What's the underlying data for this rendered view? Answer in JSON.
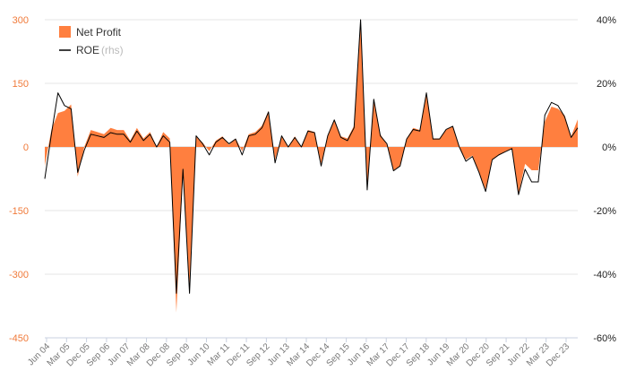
{
  "chart_data": {
    "type": "area",
    "title": "",
    "xlabel": "",
    "ylabel": "",
    "legend": {
      "placement": "top-left",
      "entries": [
        {
          "label": "Net Profit",
          "sub": "",
          "color": "#ff7f3f",
          "kind": "area"
        },
        {
          "label": "ROE",
          "sub": "(rhs)",
          "color": "#000000",
          "kind": "line"
        }
      ]
    },
    "colors": {
      "area": "#ff7f3f",
      "line": "#000000",
      "grid": "#e6e6e6",
      "left_ticks": "#f07a3a"
    },
    "grid": true,
    "y_left": {
      "min": -450,
      "max": 300,
      "ticks": [
        "300",
        "150",
        "0",
        "-150",
        "-300",
        "-450"
      ],
      "tick_values": [
        300,
        150,
        0,
        -150,
        -300,
        -450
      ]
    },
    "y_right": {
      "min": -60,
      "max": 40,
      "ticks": [
        "40%",
        "20%",
        "0%",
        "-20%",
        "-40%",
        "-60%"
      ],
      "tick_values": [
        40,
        20,
        0,
        -20,
        -40,
        -60
      ]
    },
    "x_ticks": [
      "Jun 04",
      "Mar 05",
      "Dec 05",
      "Sep 06",
      "Jun 07",
      "Mar 08",
      "Dec 08",
      "Sep 09",
      "Jun 10",
      "Mar 11",
      "Dec 11",
      "Sep 12",
      "Jun 13",
      "Mar 14",
      "Dec 14",
      "Sep 15",
      "Jun 16",
      "Mar 17",
      "Dec 17",
      "Sep 18",
      "Jun 19",
      "Mar 20",
      "Dec 20",
      "Sep 21",
      "Jun 22",
      "Mar 23",
      "Dec 23"
    ],
    "series": [
      {
        "name": "Net Profit",
        "axis": "left",
        "values": [
          -45,
          40,
          80,
          85,
          100,
          -70,
          0,
          40,
          35,
          30,
          45,
          40,
          40,
          15,
          45,
          20,
          35,
          0,
          35,
          20,
          -390,
          -60,
          -330,
          25,
          10,
          -10,
          15,
          25,
          5,
          20,
          -10,
          30,
          35,
          50,
          85,
          -30,
          25,
          0,
          25,
          0,
          40,
          35,
          -40,
          25,
          65,
          25,
          20,
          50,
          300,
          -100,
          110,
          30,
          5,
          -55,
          -45,
          20,
          45,
          40,
          130,
          20,
          20,
          40,
          50,
          0,
          -30,
          -20,
          -60,
          -100,
          -30,
          -20,
          -10,
          -5,
          -110,
          -40,
          -55,
          -55,
          60,
          95,
          90,
          75,
          25,
          65
        ]
      },
      {
        "name": "ROE",
        "axis": "right",
        "values": [
          -10,
          4,
          17,
          13,
          12,
          -8,
          -1,
          4,
          3.5,
          3,
          4.5,
          4,
          4,
          1.5,
          5,
          2,
          4,
          0,
          3.5,
          1.5,
          -46,
          -7,
          -46,
          3.5,
          1,
          -2.5,
          1.5,
          3,
          1,
          2.5,
          -2.5,
          3.5,
          4,
          6,
          11,
          -5,
          3.5,
          0,
          3,
          0,
          5,
          4.5,
          -6,
          3.5,
          8.5,
          3,
          2,
          6,
          40,
          -13.5,
          15,
          3.5,
          1,
          -7.5,
          -6,
          2.5,
          5.5,
          5,
          17,
          2.5,
          2.5,
          5.5,
          6.5,
          0,
          -4.5,
          -3,
          -8,
          -14,
          -4,
          -2.5,
          -1.5,
          -0.5,
          -15,
          -7,
          -11,
          -11,
          10,
          14,
          13,
          9.5,
          3,
          6
        ]
      }
    ]
  }
}
